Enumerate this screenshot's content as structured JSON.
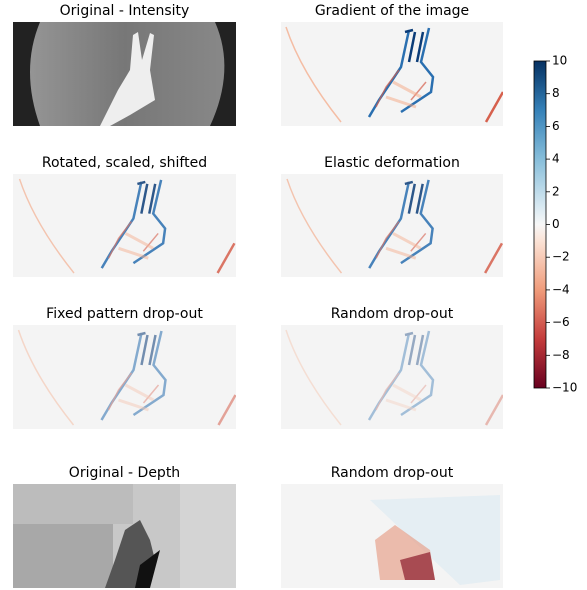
{
  "chart_data": {
    "type": "image-grid",
    "panels": [
      {
        "title": "Original - Intensity"
      },
      {
        "title": "Gradient of the image"
      },
      {
        "title": "Rotated, scaled, shifted"
      },
      {
        "title": "Elastic deformation"
      },
      {
        "title": "Fixed pattern drop-out"
      },
      {
        "title": "Random drop-out"
      },
      {
        "title": "Original - Depth"
      },
      {
        "title": "Random drop-out"
      }
    ],
    "colormap": "RdBu",
    "ylim": [
      -10,
      10
    ],
    "yticks": [
      {
        "value": -10,
        "label": "−10"
      },
      {
        "value": -8,
        "label": "−8"
      },
      {
        "value": -6,
        "label": "−6"
      },
      {
        "value": -4,
        "label": "−4"
      },
      {
        "value": -2,
        "label": "−2"
      },
      0,
      2,
      4,
      6,
      8,
      10
    ]
  }
}
